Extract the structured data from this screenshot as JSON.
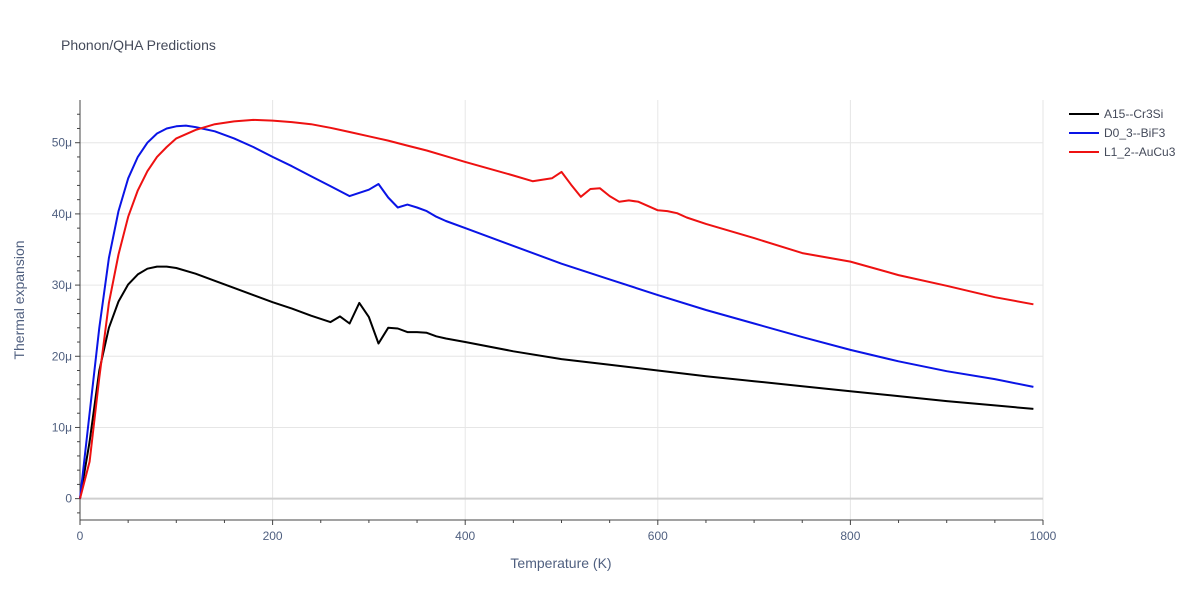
{
  "chart_data": {
    "type": "line",
    "title": "Phonon/QHA Predictions",
    "xlabel": "Temperature (K)",
    "ylabel": "Thermal expansion",
    "xlim": [
      0,
      1000
    ],
    "ylim": [
      -3,
      56
    ],
    "x_ticks": [
      0,
      200,
      400,
      600,
      800,
      1000
    ],
    "x_tick_labels": [
      "0",
      "200",
      "400",
      "600",
      "800",
      "1000"
    ],
    "y_ticks": [
      0,
      10,
      20,
      30,
      40,
      50
    ],
    "y_tick_labels": [
      "0",
      "10μ",
      "20μ",
      "30μ",
      "40μ",
      "50μ"
    ],
    "y_unit_note": "values in units of 1e-6 (μ)",
    "grid": true,
    "legend_position": "top-right",
    "series": [
      {
        "name": "A15--Cr3Si",
        "color": "#000000",
        "x": [
          0,
          10,
          20,
          30,
          40,
          50,
          60,
          70,
          80,
          90,
          100,
          120,
          140,
          160,
          180,
          200,
          220,
          240,
          260,
          270,
          280,
          290,
          300,
          310,
          320,
          330,
          340,
          350,
          360,
          370,
          380,
          400,
          450,
          500,
          550,
          600,
          650,
          700,
          750,
          800,
          850,
          900,
          950,
          990
        ],
        "y": [
          0,
          8,
          18,
          24,
          27.7,
          30.1,
          31.5,
          32.3,
          32.6,
          32.6,
          32.4,
          31.6,
          30.6,
          29.6,
          28.6,
          27.6,
          26.7,
          25.7,
          24.8,
          25.6,
          24.6,
          27.5,
          25.5,
          21.8,
          24,
          23.9,
          23.4,
          23.4,
          23.3,
          22.8,
          22.5,
          22,
          20.7,
          19.6,
          18.8,
          18,
          17.2,
          16.5,
          15.8,
          15.1,
          14.4,
          13.7,
          13.1,
          12.6
        ]
      },
      {
        "name": "D0_3--BiF3",
        "color": "#0a14e6",
        "x": [
          0,
          10,
          20,
          30,
          40,
          50,
          60,
          70,
          80,
          90,
          100,
          110,
          120,
          140,
          160,
          180,
          200,
          220,
          240,
          260,
          280,
          300,
          310,
          320,
          330,
          340,
          350,
          360,
          370,
          380,
          400,
          450,
          500,
          550,
          600,
          650,
          700,
          750,
          800,
          850,
          900,
          950,
          990
        ],
        "y": [
          0,
          12,
          24,
          33.8,
          40.4,
          45,
          48,
          50,
          51.3,
          52,
          52.3,
          52.4,
          52.2,
          51.6,
          50.6,
          49.4,
          48,
          46.7,
          45.3,
          43.9,
          42.5,
          43.4,
          44.2,
          42.3,
          40.9,
          41.3,
          40.9,
          40.4,
          39.6,
          39,
          38,
          35.5,
          33,
          30.8,
          28.6,
          26.5,
          24.6,
          22.7,
          20.9,
          19.3,
          17.9,
          16.8,
          15.7
        ]
      },
      {
        "name": "L1_2--AuCu3",
        "color": "#ee1111",
        "x": [
          0,
          10,
          20,
          30,
          40,
          50,
          60,
          70,
          80,
          90,
          100,
          120,
          140,
          160,
          180,
          200,
          220,
          240,
          260,
          280,
          300,
          320,
          340,
          360,
          380,
          400,
          450,
          470,
          480,
          490,
          500,
          510,
          520,
          530,
          540,
          550,
          560,
          570,
          580,
          600,
          610,
          620,
          630,
          650,
          700,
          750,
          800,
          850,
          900,
          950,
          990
        ],
        "y": [
          0,
          5.2,
          17,
          27.5,
          34.3,
          39.6,
          43.3,
          46,
          48,
          49.4,
          50.6,
          51.8,
          52.6,
          53,
          53.2,
          53.1,
          52.9,
          52.6,
          52.1,
          51.5,
          50.9,
          50.3,
          49.6,
          48.9,
          48.1,
          47.3,
          45.4,
          44.6,
          44.8,
          45,
          45.9,
          44.1,
          42.4,
          43.5,
          43.6,
          42.5,
          41.7,
          41.9,
          41.7,
          40.5,
          40.4,
          40.1,
          39.5,
          38.6,
          36.6,
          34.5,
          33.3,
          31.4,
          29.9,
          28.3,
          27.3
        ]
      }
    ]
  }
}
